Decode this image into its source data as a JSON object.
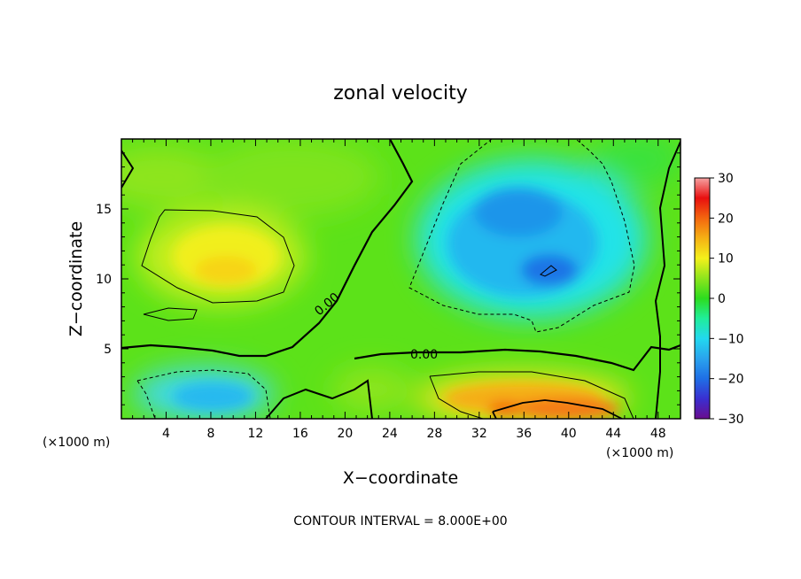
{
  "chart_data": {
    "type": "heatmap",
    "title": "zonal velocity",
    "xlabel": "X−coordinate",
    "ylabel": "Z−coordinate",
    "x_unit_left": "(×1000 m)",
    "x_unit_right": "(×1000 m)",
    "xlim": [
      0,
      50
    ],
    "ylim": [
      0,
      20
    ],
    "x_ticks": [
      4,
      8,
      12,
      16,
      20,
      24,
      28,
      32,
      36,
      40,
      44,
      48
    ],
    "y_ticks": [
      5,
      10,
      15
    ],
    "colorbar": {
      "range": [
        -30,
        30
      ],
      "ticks": [
        30,
        20,
        10,
        0,
        -10,
        -20,
        -30
      ],
      "tick_labels": [
        "30",
        "20",
        "10",
        "0",
        "−10",
        "−20",
        "−30"
      ],
      "colors": [
        "#6a0d8f",
        "#3a2fd0",
        "#1f6fe6",
        "#2aa3ee",
        "#22d8ef",
        "#20ee9a",
        "#2ddc1e",
        "#8ee51d",
        "#f4f01b",
        "#f5b114",
        "#f3660f",
        "#e80f0f",
        "#f6a2a2"
      ]
    },
    "field_samples": [
      {
        "x": 9,
        "z": 11,
        "u": 11
      },
      {
        "x": 3,
        "z": 17,
        "u": 4
      },
      {
        "x": 9,
        "z": 1.5,
        "u": -7
      },
      {
        "x": 38,
        "z": 11,
        "u": -13
      },
      {
        "x": 36,
        "z": 15,
        "u": -10
      },
      {
        "x": 40,
        "z": 1,
        "u": 17
      },
      {
        "x": 46,
        "z": 15,
        "u": 3
      }
    ],
    "contour_labels": [
      "0.00",
      "0.00"
    ],
    "contour_interval_note": "CONTOUR INTERVAL = 8.000E+00"
  }
}
